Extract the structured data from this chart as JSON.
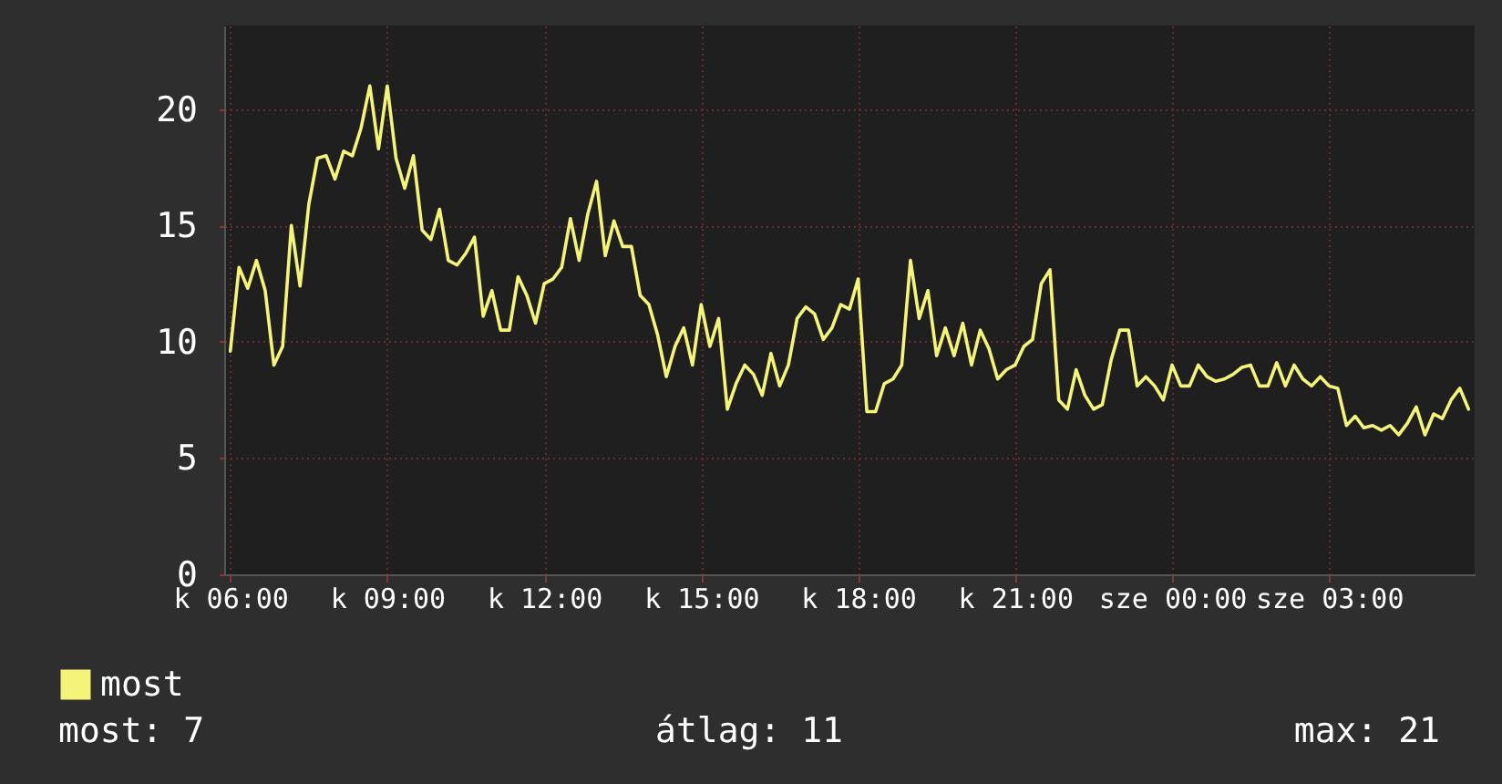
{
  "chart_data": {
    "type": "line",
    "categories": [
      "k 06:00",
      null,
      null,
      null,
      null,
      null,
      null,
      null,
      null,
      null,
      null,
      null,
      null,
      null,
      null,
      null,
      null,
      null,
      "k 09:00",
      null,
      null,
      null,
      null,
      null,
      null,
      null,
      null,
      null,
      null,
      null,
      null,
      null,
      null,
      null,
      null,
      null,
      "k 12:00",
      null,
      null,
      null,
      null,
      null,
      null,
      null,
      null,
      null,
      null,
      null,
      null,
      null,
      null,
      null,
      null,
      null,
      "k 15:00",
      null,
      null,
      null,
      null,
      null,
      null,
      null,
      null,
      null,
      null,
      null,
      null,
      null,
      null,
      null,
      null,
      null,
      "k 18:00",
      null,
      null,
      null,
      null,
      null,
      null,
      null,
      null,
      null,
      null,
      null,
      null,
      null,
      null,
      null,
      null,
      null,
      "k 21:00",
      null,
      null,
      null,
      null,
      null,
      null,
      null,
      null,
      null,
      null,
      null,
      null,
      null,
      null,
      null,
      null,
      null,
      "sze 00:00",
      null,
      null,
      null,
      null,
      null,
      null,
      null,
      null,
      null,
      null,
      null,
      null,
      null,
      null,
      null,
      null,
      null,
      "sze 03:00",
      null,
      null,
      null,
      null,
      null,
      null,
      null,
      null,
      null,
      null,
      null,
      null,
      null,
      null,
      null,
      null
    ],
    "series": [
      {
        "name": "most",
        "color": "#f4f47a",
        "values": [
          9.6,
          13.2,
          12.3,
          13.5,
          12.2,
          9.0,
          9.8,
          15.0,
          12.4,
          15.9,
          17.9,
          18.0,
          17.0,
          18.2,
          18.0,
          19.2,
          21.0,
          18.3,
          21.0,
          17.9,
          16.6,
          18.0,
          14.8,
          14.4,
          15.7,
          13.5,
          13.3,
          13.8,
          14.5,
          11.1,
          12.2,
          10.5,
          10.5,
          12.8,
          12.0,
          10.8,
          12.5,
          12.7,
          13.2,
          15.3,
          13.5,
          15.5,
          16.9,
          13.7,
          15.2,
          14.1,
          14.1,
          12.0,
          11.6,
          10.3,
          8.5,
          9.8,
          10.6,
          9.0,
          11.6,
          9.8,
          11.0,
          7.1,
          8.2,
          9.0,
          8.6,
          7.7,
          9.5,
          8.1,
          9.0,
          11.0,
          11.5,
          11.2,
          10.1,
          10.6,
          11.6,
          11.4,
          12.7,
          7.0,
          7.0,
          8.2,
          8.4,
          9.0,
          13.5,
          11.0,
          12.2,
          9.4,
          10.6,
          9.4,
          10.8,
          9.0,
          10.5,
          9.7,
          8.4,
          8.8,
          9.0,
          9.8,
          10.1,
          12.5,
          13.1,
          7.5,
          7.1,
          8.8,
          7.7,
          7.1,
          7.3,
          9.2,
          10.5,
          10.5,
          8.1,
          8.5,
          8.1,
          7.5,
          9.0,
          8.1,
          8.1,
          9.0,
          8.5,
          8.3,
          8.4,
          8.6,
          8.9,
          9.0,
          8.1,
          8.1,
          9.1,
          8.1,
          9.0,
          8.4,
          8.1,
          8.5,
          8.1,
          8.0,
          6.4,
          6.8,
          6.3,
          6.4,
          6.2,
          6.4,
          6.0,
          6.5,
          7.2,
          6.0,
          6.9,
          6.7,
          7.5,
          8.0,
          7.1
        ]
      }
    ],
    "ylim": [
      0,
      23.6
    ],
    "yticks": [
      0,
      5,
      10,
      15,
      20
    ],
    "grid": true,
    "legend": "bottom left",
    "annotations": [
      "most: 7",
      "átlag: 11",
      "max: 21"
    ]
  }
}
